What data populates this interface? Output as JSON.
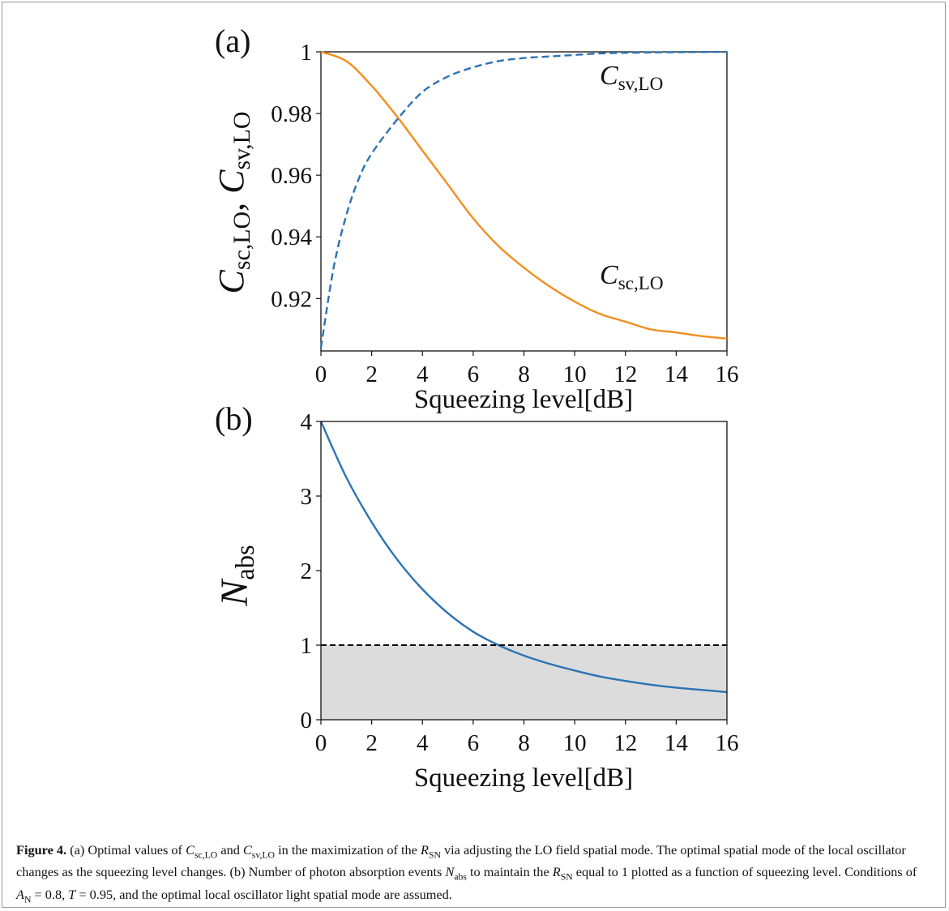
{
  "colors": {
    "orange": "#f28e20",
    "blue": "#2c73b4",
    "black": "#000000",
    "shade": "#dcdcdc"
  },
  "chart_data": [
    {
      "panel_label": "(a)",
      "type": "line",
      "xlabel": "Squeezing level[dB]",
      "ylabel_main": "C",
      "ylabel_sub1": "sc,LO",
      "ylabel_sep": ", ",
      "ylabel_sub2": "sv,LO",
      "xlim": [
        0,
        16
      ],
      "ylim": [
        0.903,
        1.0
      ],
      "xticks": [
        0,
        2,
        4,
        6,
        8,
        10,
        12,
        14,
        16
      ],
      "yticks": [
        0.92,
        0.94,
        0.96,
        0.98,
        1
      ],
      "ytick_labels": [
        "0.92",
        "0.94",
        "0.96",
        "0.98",
        "1"
      ],
      "series": [
        {
          "name": "C_sc,LO",
          "label_main": "C",
          "label_sub": "sc,LO",
          "style": "solid",
          "color": "#f28e20",
          "x": [
            0,
            1,
            2,
            3,
            4,
            5,
            6,
            7,
            8,
            9,
            10,
            11,
            12,
            13,
            14,
            15,
            16
          ],
          "y": [
            1.0,
            0.997,
            0.989,
            0.979,
            0.968,
            0.957,
            0.946,
            0.937,
            0.93,
            0.924,
            0.919,
            0.915,
            0.9125,
            0.91,
            0.909,
            0.9078,
            0.907
          ]
        },
        {
          "name": "C_sv,LO",
          "label_main": "C",
          "label_sub": "sv,LO",
          "style": "dashed",
          "color": "#2c73b4",
          "x": [
            0,
            0.5,
            1,
            1.5,
            2,
            3,
            4,
            5,
            6,
            7,
            8,
            9,
            10,
            11,
            12,
            14,
            16
          ],
          "y": [
            0.904,
            0.93,
            0.947,
            0.959,
            0.967,
            0.978,
            0.987,
            0.992,
            0.995,
            0.997,
            0.998,
            0.9985,
            0.999,
            0.9995,
            0.9997,
            0.9999,
            1.0
          ]
        }
      ]
    },
    {
      "panel_label": "(b)",
      "type": "line",
      "xlabel": "Squeezing level[dB]",
      "ylabel_main": "N",
      "ylabel_sub": "abs",
      "xlim": [
        0,
        16
      ],
      "ylim": [
        0,
        4
      ],
      "xticks": [
        0,
        2,
        4,
        6,
        8,
        10,
        12,
        14,
        16
      ],
      "yticks": [
        0,
        1,
        2,
        3,
        4
      ],
      "ytick_labels": [
        "0",
        "1",
        "2",
        "3",
        "4"
      ],
      "threshold": 1,
      "series": [
        {
          "name": "N_abs",
          "style": "solid",
          "color": "#2c73b4",
          "x": [
            0,
            1,
            2,
            3,
            4,
            5,
            6,
            7,
            8,
            9,
            10,
            11,
            12,
            13,
            14,
            15,
            16
          ],
          "y": [
            4.0,
            3.25,
            2.65,
            2.15,
            1.75,
            1.43,
            1.18,
            1.0,
            0.86,
            0.75,
            0.66,
            0.58,
            0.52,
            0.47,
            0.43,
            0.4,
            0.37
          ]
        }
      ]
    }
  ],
  "caption": {
    "figure_label": "Figure 4.",
    "t1": "(a) Optimal values of ",
    "c_main": "C",
    "c_sub1": "sc,LO",
    "t2": "and ",
    "c_sub2": "sv,LO",
    "t3": "in the maximization of the ",
    "r_main": "R",
    "r_sub": "SN",
    "t4": "via adjusting the LO field spatial mode. The optimal spatial mode of the local oscillator changes as the squeezing level changes. (b) Number of photon absorption events ",
    "n_main": "N",
    "n_sub": "abs",
    "t5": "to maintain the ",
    "t6": "equal to 1 plotted as a function of squeezing level. Conditions of ",
    "cond": "A",
    "cond_sub": "N",
    "cond_eq": " = 0.8, ",
    "t_sym": "T",
    "t_eq": " = 0.95",
    "t7": ", and the optimal local oscillator light spatial mode are assumed."
  }
}
